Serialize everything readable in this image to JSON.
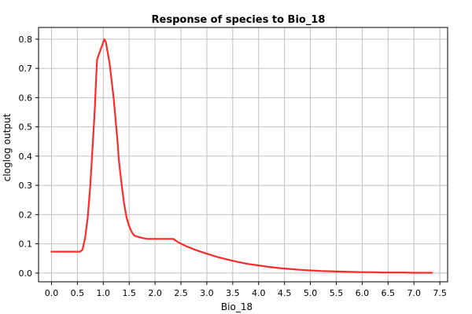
{
  "chart_data": {
    "type": "line",
    "title": "Response of species to Bio_18",
    "xlabel": "Bio_18",
    "ylabel": "cloglog output",
    "xlim": [
      -0.25,
      7.65
    ],
    "ylim": [
      -0.03,
      0.84
    ],
    "x_ticks": [
      "0.0",
      "0.5",
      "1.0",
      "1.5",
      "2.0",
      "2.5",
      "3.0",
      "3.5",
      "4.0",
      "4.5",
      "5.0",
      "5.5",
      "6.0",
      "6.5",
      "7.0",
      "7.5"
    ],
    "y_ticks": [
      "0.0",
      "0.1",
      "0.2",
      "0.3",
      "0.4",
      "0.5",
      "0.6",
      "0.7",
      "0.8"
    ],
    "grid": true,
    "colors": {
      "line": "#ff2a2a",
      "grid": "#c0c0c0",
      "axis": "#000000"
    },
    "series": [
      {
        "x": [
          0.0,
          0.2,
          0.4,
          0.55,
          0.6,
          0.65,
          0.7,
          0.75,
          0.8,
          0.84,
          0.86,
          0.88,
          0.92,
          0.96,
          1.0,
          1.02,
          1.05,
          1.08,
          1.12,
          1.16,
          1.2,
          1.24,
          1.27,
          1.3,
          1.35,
          1.4,
          1.45,
          1.5,
          1.55,
          1.6,
          1.65,
          1.75,
          1.85,
          2.0,
          2.2,
          2.35,
          2.45,
          2.6,
          2.8,
          3.0,
          3.2,
          3.4,
          3.6,
          3.8,
          4.0,
          4.2,
          4.4,
          4.6,
          4.8,
          5.0,
          5.2,
          5.4,
          5.6,
          5.8,
          6.0,
          6.2,
          6.4,
          6.6,
          6.8,
          7.0,
          7.2,
          7.35
        ],
        "y": [
          0.073,
          0.073,
          0.073,
          0.073,
          0.08,
          0.12,
          0.19,
          0.3,
          0.45,
          0.57,
          0.66,
          0.73,
          0.75,
          0.77,
          0.79,
          0.8,
          0.79,
          0.76,
          0.72,
          0.66,
          0.6,
          0.52,
          0.46,
          0.39,
          0.31,
          0.24,
          0.19,
          0.16,
          0.14,
          0.128,
          0.125,
          0.12,
          0.117,
          0.117,
          0.117,
          0.117,
          0.105,
          0.092,
          0.078,
          0.066,
          0.055,
          0.046,
          0.038,
          0.031,
          0.026,
          0.021,
          0.017,
          0.014,
          0.011,
          0.009,
          0.007,
          0.006,
          0.005,
          0.004,
          0.003,
          0.003,
          0.002,
          0.002,
          0.002,
          0.001,
          0.001,
          0.001
        ]
      }
    ]
  }
}
